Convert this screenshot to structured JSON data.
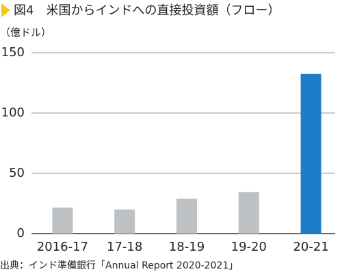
{
  "chart_data": {
    "type": "bar",
    "title": "図4　米国からインドへの直接投資額（フロー）",
    "y_label": "（億ドル）",
    "categories": [
      "2016-17",
      "17-18",
      "18-19",
      "19-20",
      "20-21"
    ],
    "values": [
      21.5,
      20,
      29,
      34.5,
      132.5
    ],
    "colors": [
      "#bdc1c3",
      "#bdc1c3",
      "#bdc1c3",
      "#bdc1c3",
      "#1c7ecb"
    ],
    "ylim": [
      0,
      150
    ],
    "yticks": [
      0,
      50,
      100,
      150
    ],
    "grid": true,
    "source": "出典：インド準備銀行「Annual Report 2020-2021」"
  }
}
